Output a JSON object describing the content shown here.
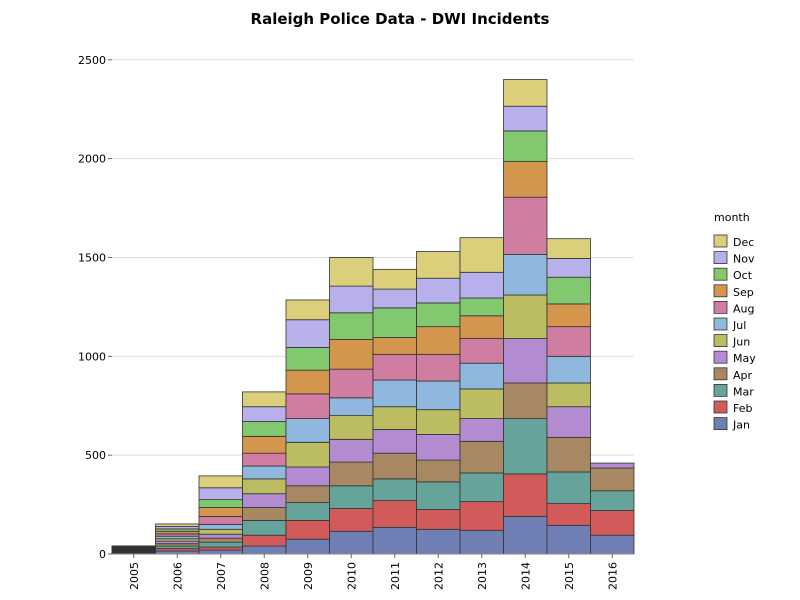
{
  "chart_data": {
    "type": "bar",
    "stacked": true,
    "title": "Raleigh Police Data - DWI Incidents",
    "xlabel": "",
    "ylabel": "",
    "ylim": [
      0,
      2600
    ],
    "y_ticks": [
      0,
      500,
      1000,
      1500,
      2000,
      2500
    ],
    "grid": true,
    "legend": {
      "title": "month",
      "position": "right"
    },
    "categories": [
      "2005",
      "2006",
      "2007",
      "2008",
      "2009",
      "2010",
      "2011",
      "2012",
      "2013",
      "2014",
      "2015",
      "2016"
    ],
    "series": [
      {
        "name": "Jan",
        "color": "#6f7fb4",
        "values": [
          5,
          15,
          20,
          40,
          75,
          115,
          135,
          125,
          120,
          190,
          145,
          95
        ]
      },
      {
        "name": "Feb",
        "color": "#d15b5b",
        "values": [
          3,
          12,
          15,
          55,
          95,
          115,
          135,
          100,
          145,
          215,
          110,
          125
        ]
      },
      {
        "name": "Mar",
        "color": "#66a39a",
        "values": [
          4,
          13,
          25,
          75,
          90,
          115,
          110,
          140,
          145,
          280,
          160,
          100
        ]
      },
      {
        "name": "Apr",
        "color": "#a88862",
        "values": [
          3,
          12,
          20,
          65,
          85,
          120,
          130,
          110,
          160,
          180,
          175,
          115
        ]
      },
      {
        "name": "May",
        "color": "#b38bd0",
        "values": [
          4,
          13,
          20,
          70,
          95,
          115,
          120,
          130,
          115,
          225,
          155,
          25
        ]
      },
      {
        "name": "Jun",
        "color": "#bcbd62",
        "values": [
          3,
          12,
          25,
          75,
          125,
          120,
          115,
          125,
          150,
          220,
          120,
          0
        ]
      },
      {
        "name": "Jul",
        "color": "#90b8de",
        "values": [
          4,
          13,
          25,
          65,
          120,
          90,
          135,
          145,
          130,
          205,
          135,
          0
        ]
      },
      {
        "name": "Aug",
        "color": "#cf7da1",
        "values": [
          3,
          12,
          40,
          65,
          125,
          145,
          130,
          135,
          125,
          290,
          150,
          0
        ]
      },
      {
        "name": "Sep",
        "color": "#d4964c",
        "values": [
          4,
          13,
          45,
          85,
          120,
          150,
          85,
          140,
          115,
          180,
          115,
          0
        ]
      },
      {
        "name": "Oct",
        "color": "#82c86e",
        "values": [
          3,
          12,
          40,
          75,
          115,
          135,
          150,
          120,
          90,
          155,
          135,
          0
        ]
      },
      {
        "name": "Nov",
        "color": "#b8b0ea",
        "values": [
          3,
          12,
          60,
          75,
          140,
          135,
          95,
          125,
          130,
          125,
          95,
          0
        ]
      },
      {
        "name": "Dec",
        "color": "#dccf7c",
        "values": [
          2,
          13,
          60,
          75,
          100,
          145,
          100,
          135,
          175,
          135,
          100,
          0
        ]
      }
    ]
  }
}
